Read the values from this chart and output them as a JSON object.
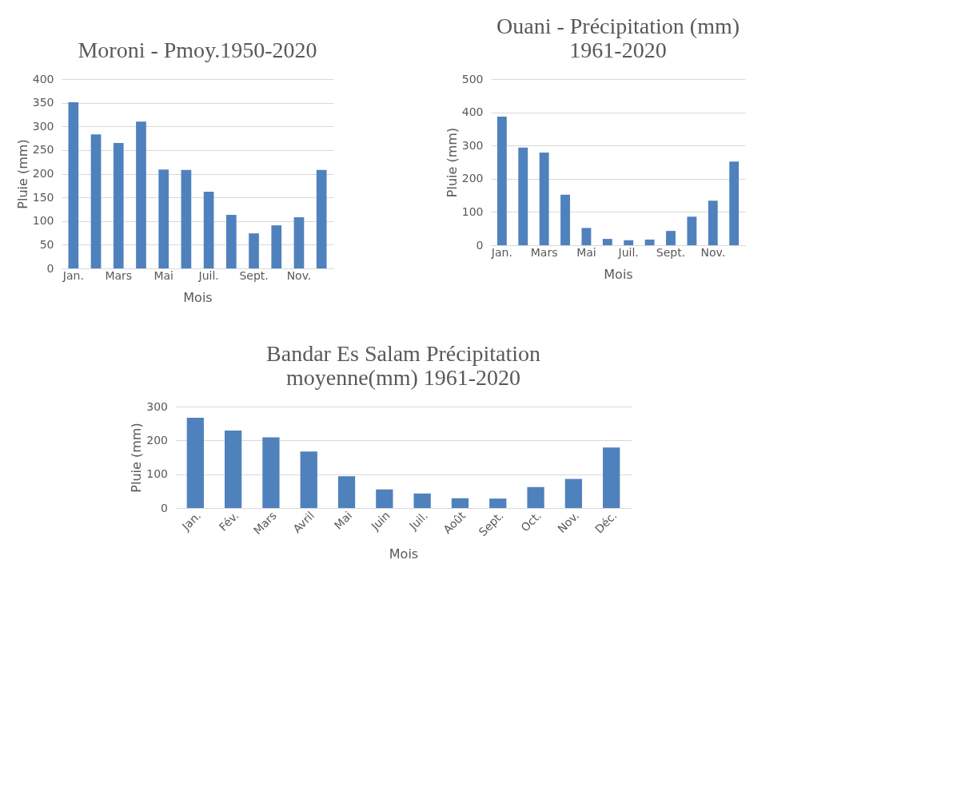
{
  "chart_data": [
    {
      "type": "bar",
      "title": "Moroni - Pmoy.1950-2020",
      "xlabel": "Mois",
      "ylabel": "Pluie (mm)",
      "categories": [
        "Jan.",
        null,
        "Mars",
        null,
        "Mai",
        null,
        "Juil.",
        null,
        "Sept.",
        null,
        "Nov.",
        null
      ],
      "series": [
        {
          "color": "#4f81bd",
          "values": [
            351,
            283,
            265,
            310,
            209,
            208,
            162,
            113,
            74,
            91,
            108,
            208
          ]
        }
      ],
      "ylim": [
        0,
        400
      ],
      "yticks": [
        0,
        50,
        100,
        150,
        200,
        250,
        300,
        350,
        400
      ],
      "grid": "y"
    },
    {
      "type": "bar",
      "title": "Ouani - Précipitation (mm) 1961-2020",
      "xlabel": "Mois",
      "ylabel": "Pluie (mm)",
      "categories": [
        "Jan.",
        null,
        "Mars",
        null,
        "Mai",
        null,
        "Juil.",
        null,
        "Sept.",
        null,
        "Nov.",
        null
      ],
      "series": [
        {
          "color": "#4f81bd",
          "values": [
            387,
            294,
            279,
            152,
            52,
            19,
            15,
            17,
            43,
            86,
            134,
            252
          ]
        }
      ],
      "ylim": [
        0,
        500
      ],
      "yticks": [
        0,
        100,
        200,
        300,
        400,
        500
      ],
      "grid": "y"
    },
    {
      "type": "bar",
      "title": "Bandar Es Salam Précipitation moyenne(mm) 1961-2020",
      "xlabel": "Mois",
      "ylabel": "Pluie (mm)",
      "categories": [
        "Jan.",
        "Fév.",
        "Mars",
        "Avril",
        "Mai",
        "Juin",
        "Juil.",
        "Août",
        "Sept.",
        "Oct.",
        "Nov.",
        "Déc."
      ],
      "series": [
        {
          "color": "#4f81bd",
          "values": [
            267,
            229,
            209,
            167,
            94,
            55,
            43,
            29,
            28,
            62,
            86,
            179
          ]
        }
      ],
      "ylim": [
        0,
        300
      ],
      "yticks": [
        0,
        100,
        200,
        300
      ],
      "grid": "y"
    }
  ]
}
